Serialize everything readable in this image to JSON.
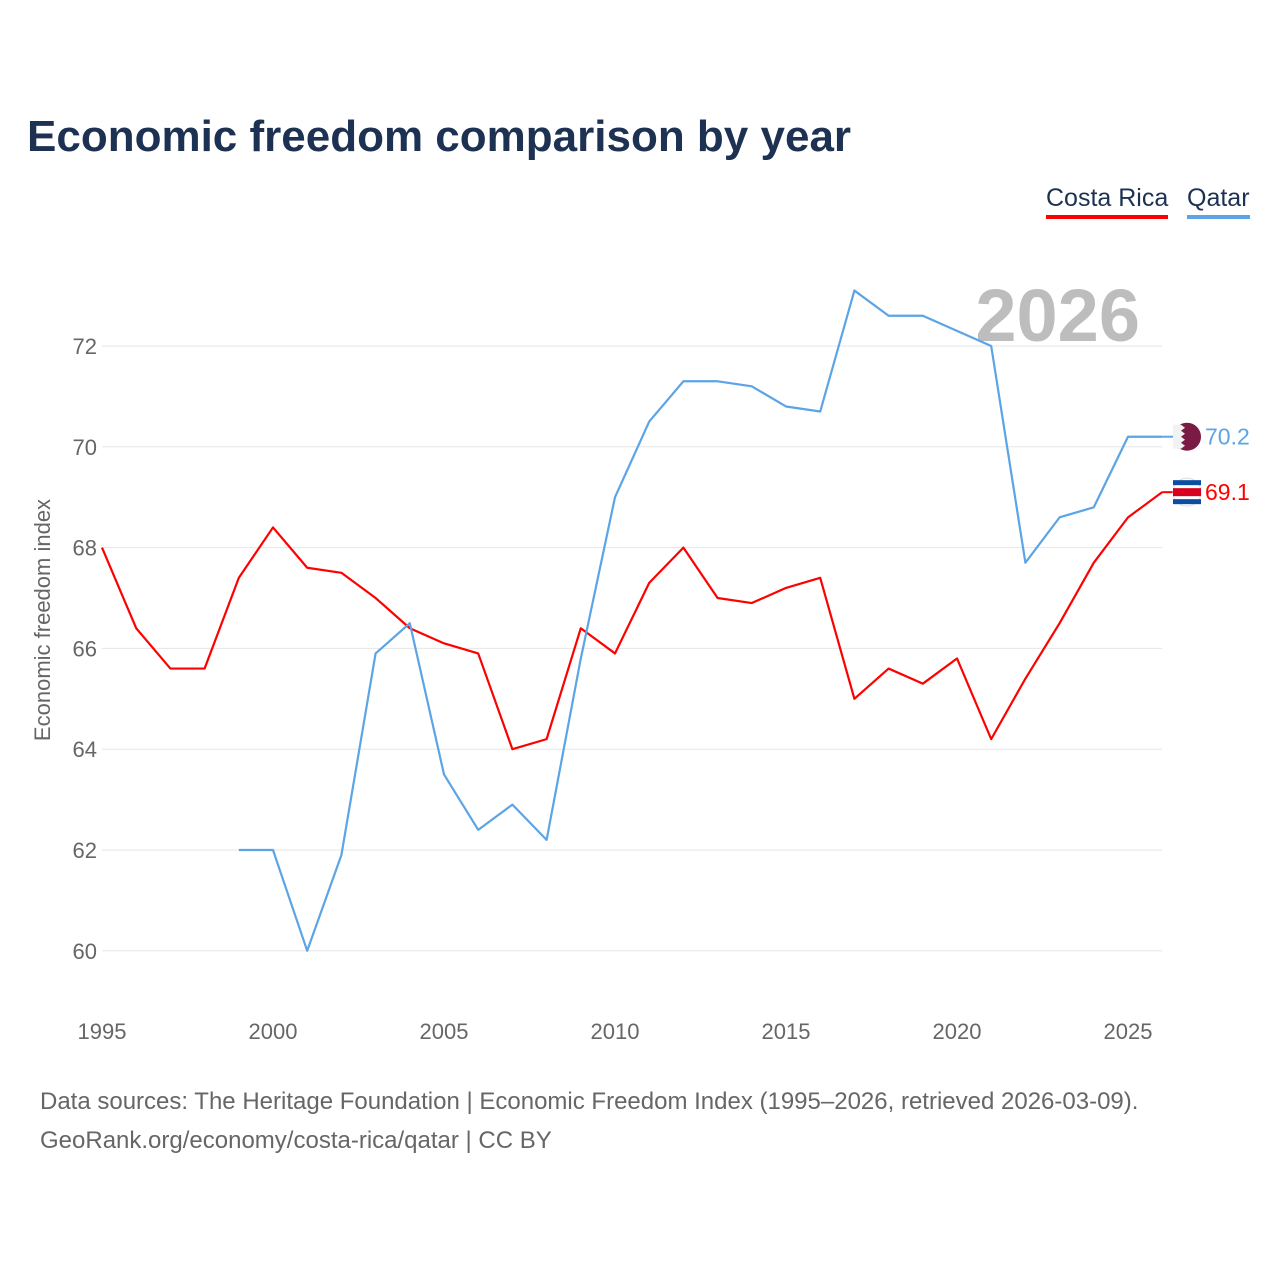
{
  "chart_data": {
    "type": "line",
    "title": "Economic freedom comparison by year",
    "xlabel": "",
    "ylabel": "Economic freedom index",
    "xlim": [
      1995,
      2026
    ],
    "ylim": [
      59,
      73.5
    ],
    "x_ticks": [
      1995,
      2000,
      2005,
      2010,
      2015,
      2020,
      2025
    ],
    "y_ticks": [
      60,
      62,
      64,
      66,
      68,
      70,
      72
    ],
    "grid": true,
    "legend_position": "top-right",
    "year_overlay": "2026",
    "series": [
      {
        "name": "Costa Rica",
        "color": "#ff0000",
        "end_label": "69.1",
        "x": [
          1995,
          1996,
          1997,
          1998,
          1999,
          2000,
          2001,
          2002,
          2003,
          2004,
          2005,
          2006,
          2007,
          2008,
          2009,
          2010,
          2011,
          2012,
          2013,
          2014,
          2015,
          2016,
          2017,
          2018,
          2019,
          2020,
          2021,
          2022,
          2023,
          2024,
          2025,
          2026
        ],
        "values": [
          68.0,
          66.4,
          65.6,
          65.6,
          67.4,
          68.4,
          67.6,
          67.5,
          67.0,
          66.4,
          66.1,
          65.9,
          64.0,
          64.2,
          66.4,
          65.9,
          67.3,
          68.0,
          67.0,
          66.9,
          67.2,
          67.4,
          65.0,
          65.6,
          65.3,
          65.8,
          64.2,
          65.4,
          66.5,
          67.7,
          68.6,
          69.1
        ]
      },
      {
        "name": "Qatar",
        "color": "#5ba4e6",
        "end_label": "70.2",
        "x": [
          1999,
          2000,
          2001,
          2002,
          2003,
          2004,
          2005,
          2006,
          2007,
          2008,
          2009,
          2010,
          2011,
          2012,
          2013,
          2014,
          2015,
          2016,
          2017,
          2018,
          2019,
          2020,
          2021,
          2022,
          2023,
          2024,
          2025,
          2026
        ],
        "values": [
          62.0,
          62.0,
          60.0,
          61.9,
          65.9,
          66.5,
          63.5,
          62.4,
          62.9,
          62.2,
          65.8,
          69.0,
          70.5,
          71.3,
          71.3,
          71.2,
          70.8,
          70.7,
          73.1,
          72.6,
          72.6,
          72.3,
          72.0,
          67.7,
          68.6,
          68.8,
          70.2,
          70.2
        ]
      }
    ]
  },
  "source_line1": "Data sources: The Heritage Foundation | Economic Freedom Index (1995–2026, retrieved 2026-03-09).",
  "source_line2": "GeoRank.org/economy/costa-rica/qatar | CC BY"
}
